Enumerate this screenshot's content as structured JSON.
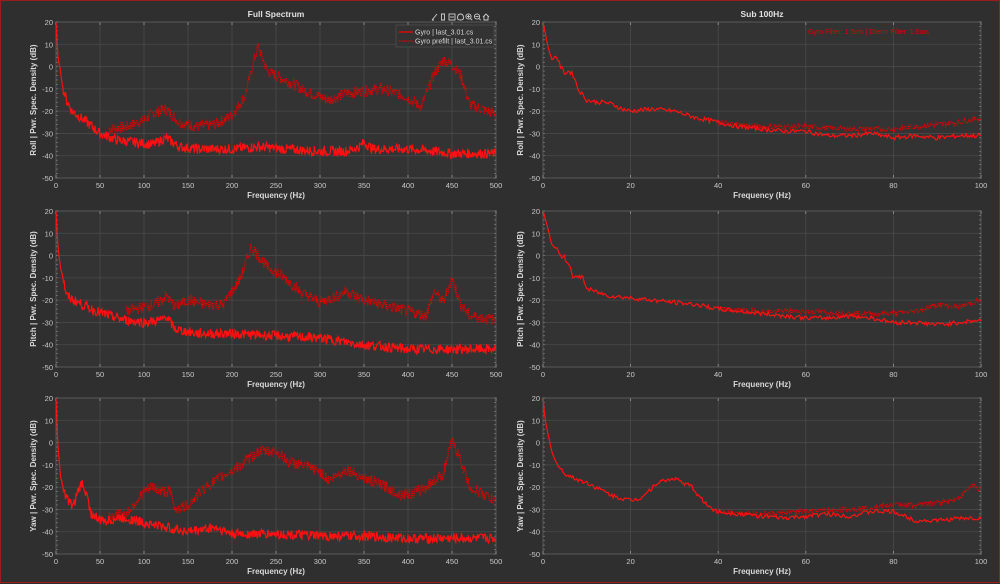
{
  "window": {
    "accent_color": "#9b1c1c",
    "background": "#2f2f2f"
  },
  "toolbar": {
    "icons": [
      "brush-icon",
      "data-tip-icon",
      "restore-view-icon",
      "pan-hand-icon",
      "zoom-in-icon",
      "zoom-out-icon",
      "home-icon"
    ]
  },
  "legend": {
    "items": [
      {
        "label": "Gyro | last_3.01.cs",
        "style": "solid",
        "color": "#ff0000"
      },
      {
        "label": "Gyro prefilt | last_3.01.cs",
        "style": "dotted",
        "color": "#e00000"
      }
    ]
  },
  "annotation": {
    "text": "Gyro Filter: 1.5ms | Dterm Filter: 1.5ms",
    "color": "#e00000"
  },
  "chart_data": [
    {
      "type": "line",
      "id": "roll-full",
      "title": "Full Spectrum",
      "xlabel": "Frequency (Hz)",
      "ylabel": "Roll  |  Pwr. Spec. Density (dB)",
      "xlim": [
        0,
        500
      ],
      "ylim": [
        -50,
        20
      ],
      "xticks": [
        0,
        50,
        100,
        150,
        200,
        250,
        300,
        350,
        400,
        450,
        500
      ],
      "yticks": [
        20,
        10,
        0,
        -10,
        -20,
        -30,
        -40,
        -50
      ],
      "grid": true,
      "legend": "top-right",
      "series": [
        {
          "name": "Gyro | last_3.01.cs",
          "style": "solid",
          "x": [
            0,
            2,
            5,
            8,
            12,
            18,
            25,
            35,
            50,
            70,
            90,
            110,
            120,
            125,
            140,
            160,
            200,
            230,
            260,
            300,
            330,
            345,
            350,
            360,
            400,
            430,
            450,
            470,
            500
          ],
          "y": [
            20,
            5,
            -2,
            -10,
            -15,
            -20,
            -22,
            -25,
            -30,
            -33,
            -34,
            -35,
            -33,
            -32,
            -36,
            -37,
            -37,
            -36,
            -37,
            -38,
            -38,
            -36,
            -34,
            -37,
            -37,
            -38,
            -39,
            -39,
            -39
          ]
        },
        {
          "name": "Gyro prefilt | last_3.01.cs",
          "style": "dotted",
          "x": [
            60,
            80,
            100,
            110,
            125,
            140,
            160,
            180,
            200,
            215,
            225,
            230,
            240,
            250,
            270,
            290,
            310,
            330,
            350,
            370,
            395,
            415,
            430,
            440,
            450,
            460,
            470,
            490,
            500
          ],
          "y": [
            -28,
            -27,
            -24,
            -21,
            -19,
            -25,
            -27,
            -26,
            -22,
            -13,
            3,
            9,
            -2,
            -4,
            -8,
            -12,
            -15,
            -12,
            -11,
            -10,
            -13,
            -18,
            -3,
            3,
            1,
            -4,
            -17,
            -20,
            -21
          ]
        }
      ]
    },
    {
      "type": "line",
      "id": "roll-sub100",
      "title": "Sub 100Hz",
      "xlabel": "Frequency (Hz)",
      "ylabel": "Roll  |  Pwr. Spec. Density (dB)",
      "xlim": [
        0,
        100
      ],
      "ylim": [
        -50,
        20
      ],
      "xticks": [
        0,
        20,
        40,
        60,
        80,
        100
      ],
      "yticks": [
        20,
        10,
        0,
        -10,
        -20,
        -30,
        -40,
        -50
      ],
      "grid": true,
      "series": [
        {
          "name": "Gyro | last_3.01.cs",
          "style": "solid",
          "x": [
            0,
            1,
            2,
            3,
            4,
            5,
            6,
            7,
            8,
            10,
            12,
            14,
            16,
            18,
            20,
            25,
            30,
            35,
            40,
            45,
            50,
            55,
            60,
            65,
            70,
            75,
            80,
            85,
            90,
            95,
            100
          ],
          "y": [
            20,
            10,
            3,
            5,
            0,
            -3,
            -2,
            -4,
            -10,
            -15,
            -16,
            -16,
            -17,
            -19,
            -20,
            -19,
            -20,
            -23,
            -25,
            -27,
            -28,
            -29,
            -29,
            -31,
            -31,
            -30,
            -32,
            -31,
            -32,
            -31,
            -31
          ]
        },
        {
          "name": "Gyro prefilt | last_3.01.cs",
          "style": "dotted",
          "x": [
            40,
            50,
            60,
            70,
            80,
            85,
            90,
            95,
            100
          ],
          "y": [
            -25,
            -27,
            -27,
            -28,
            -28,
            -27,
            -26,
            -25,
            -23
          ]
        }
      ]
    },
    {
      "type": "line",
      "id": "pitch-full",
      "title": "",
      "xlabel": "Frequency (Hz)",
      "ylabel": "Pitch  |  Pwr. Spec. Density (dB)",
      "xlim": [
        0,
        500
      ],
      "ylim": [
        -50,
        20
      ],
      "xticks": [
        0,
        50,
        100,
        150,
        200,
        250,
        300,
        350,
        400,
        450,
        500
      ],
      "yticks": [
        20,
        10,
        0,
        -10,
        -20,
        -30,
        -40,
        -50
      ],
      "grid": true,
      "series": [
        {
          "name": "Gyro | last_3.01.cs",
          "style": "solid",
          "x": [
            0,
            2,
            5,
            8,
            12,
            20,
            40,
            60,
            80,
            100,
            120,
            125,
            135,
            160,
            200,
            250,
            300,
            350,
            400,
            450,
            500
          ],
          "y": [
            20,
            5,
            -5,
            -10,
            -18,
            -20,
            -24,
            -27,
            -29,
            -30,
            -29,
            -27,
            -33,
            -35,
            -35,
            -36,
            -37,
            -40,
            -42,
            -42,
            -42
          ]
        },
        {
          "name": "Gyro prefilt | last_3.01.cs",
          "style": "dotted",
          "x": [
            80,
            100,
            110,
            120,
            125,
            135,
            150,
            170,
            190,
            200,
            210,
            222,
            230,
            240,
            260,
            280,
            300,
            320,
            330,
            350,
            380,
            400,
            420,
            430,
            440,
            450,
            460,
            470,
            500
          ],
          "y": [
            -25,
            -23,
            -22,
            -20,
            -18,
            -23,
            -20,
            -22,
            -22,
            -16,
            -10,
            4,
            0,
            -5,
            -10,
            -17,
            -21,
            -18,
            -16,
            -20,
            -23,
            -25,
            -27,
            -16,
            -21,
            -10,
            -22,
            -27,
            -29
          ]
        }
      ]
    },
    {
      "type": "line",
      "id": "pitch-sub100",
      "title": "",
      "xlabel": "Frequency (Hz)",
      "ylabel": "Pitch  |  Pwr. Spec. Density (dB)",
      "xlim": [
        0,
        100
      ],
      "ylim": [
        -50,
        20
      ],
      "xticks": [
        0,
        20,
        40,
        60,
        80,
        100
      ],
      "yticks": [
        20,
        10,
        0,
        -10,
        -20,
        -30,
        -40,
        -50
      ],
      "grid": true,
      "series": [
        {
          "name": "Gyro | last_3.01.cs",
          "style": "solid",
          "x": [
            0,
            1,
            2,
            3,
            4,
            5,
            6,
            7,
            8,
            9,
            10,
            15,
            20,
            25,
            30,
            35,
            40,
            45,
            50,
            55,
            60,
            65,
            70,
            75,
            80,
            85,
            90,
            95,
            100
          ],
          "y": [
            20,
            13,
            5,
            3,
            0,
            -1,
            -4,
            -10,
            -10,
            -9,
            -15,
            -18,
            -19,
            -20,
            -21,
            -22,
            -24,
            -25,
            -26,
            -27,
            -28,
            -28,
            -27,
            -28,
            -30,
            -30,
            -31,
            -30,
            -29
          ]
        },
        {
          "name": "Gyro prefilt | last_3.01.cs",
          "style": "dotted",
          "x": [
            40,
            50,
            60,
            70,
            80,
            85,
            90,
            95,
            100
          ],
          "y": [
            -24,
            -25,
            -25,
            -26,
            -26,
            -25,
            -22,
            -23,
            -20
          ]
        }
      ]
    },
    {
      "type": "line",
      "id": "yaw-full",
      "title": "",
      "xlabel": "Frequency (Hz)",
      "ylabel": "Yaw  |  Pwr. Spec. Density (dB)",
      "xlim": [
        0,
        500
      ],
      "ylim": [
        -50,
        20
      ],
      "xticks": [
        0,
        50,
        100,
        150,
        200,
        250,
        300,
        350,
        400,
        450,
        500
      ],
      "yticks": [
        20,
        10,
        0,
        -10,
        -20,
        -30,
        -40,
        -50
      ],
      "grid": true,
      "series": [
        {
          "name": "Gyro | last_3.01.cs",
          "style": "solid",
          "x": [
            0,
            2,
            5,
            10,
            15,
            20,
            25,
            30,
            35,
            40,
            50,
            60,
            70,
            80,
            100,
            150,
            180,
            200,
            250,
            300,
            350,
            400,
            450,
            500
          ],
          "y": [
            20,
            0,
            -15,
            -23,
            -27,
            -28,
            -22,
            -18,
            -24,
            -32,
            -35,
            -35,
            -34,
            -34,
            -36,
            -40,
            -38,
            -41,
            -41,
            -42,
            -42,
            -43,
            -43,
            -43
          ]
        },
        {
          "name": "Gyro prefilt | last_3.01.cs",
          "style": "dotted",
          "x": [
            60,
            80,
            100,
            110,
            120,
            130,
            135,
            150,
            170,
            190,
            210,
            230,
            250,
            265,
            280,
            300,
            310,
            330,
            350,
            370,
            390,
            405,
            420,
            440,
            450,
            460,
            470,
            490,
            500
          ],
          "y": [
            -33,
            -32,
            -22,
            -20,
            -22,
            -22,
            -30,
            -28,
            -20,
            -15,
            -10,
            -4,
            -4,
            -9,
            -10,
            -13,
            -17,
            -12,
            -16,
            -19,
            -23,
            -23,
            -20,
            -14,
            1,
            -8,
            -20,
            -24,
            -27
          ]
        }
      ]
    },
    {
      "type": "line",
      "id": "yaw-sub100",
      "title": "",
      "xlabel": "Frequency (Hz)",
      "ylabel": "Yaw  |  Pwr. Spec. Density (dB)",
      "xlim": [
        0,
        100
      ],
      "ylim": [
        -50,
        20
      ],
      "xticks": [
        0,
        20,
        40,
        60,
        80,
        100
      ],
      "yticks": [
        20,
        10,
        0,
        -10,
        -20,
        -30,
        -40,
        -50
      ],
      "grid": true,
      "series": [
        {
          "name": "Gyro | last_3.01.cs",
          "style": "solid",
          "x": [
            0,
            0.5,
            1,
            2,
            3,
            4,
            5,
            7,
            10,
            13,
            16,
            18,
            20,
            22,
            24,
            26,
            28,
            30,
            32,
            34,
            36,
            38,
            40,
            45,
            50,
            55,
            60,
            65,
            70,
            75,
            80,
            85,
            90,
            95,
            100
          ],
          "y": [
            20,
            10,
            5,
            -4,
            -9,
            -12,
            -14,
            -16,
            -18,
            -21,
            -24,
            -25,
            -26,
            -25,
            -22,
            -18,
            -17,
            -16,
            -18,
            -20,
            -25,
            -29,
            -31,
            -32,
            -33,
            -34,
            -33,
            -32,
            -33,
            -31,
            -31,
            -35,
            -35,
            -34,
            -34
          ]
        },
        {
          "name": "Gyro prefilt | last_3.01.cs",
          "style": "dotted",
          "x": [
            40,
            50,
            60,
            70,
            80,
            85,
            90,
            95,
            98,
            100
          ],
          "y": [
            -31,
            -32,
            -31,
            -30,
            -28,
            -28,
            -27,
            -25,
            -19,
            -21
          ]
        }
      ]
    }
  ]
}
